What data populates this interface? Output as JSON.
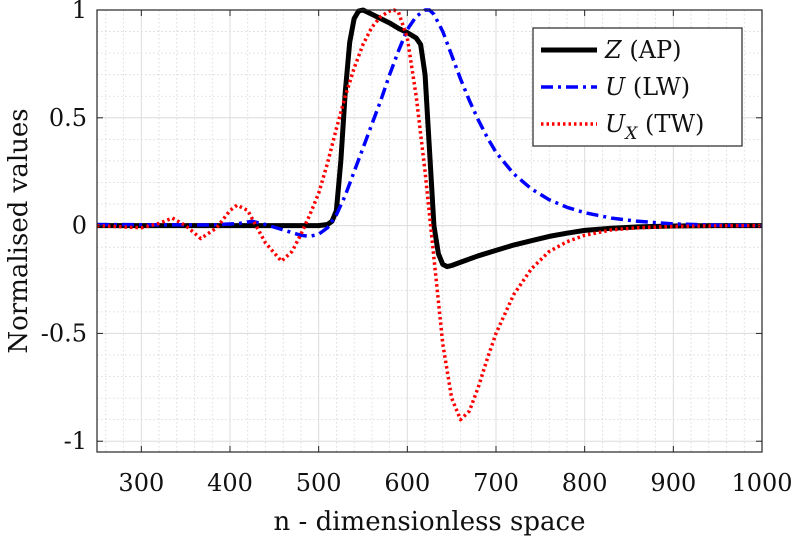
{
  "chart_data": {
    "type": "line",
    "title": "",
    "xlabel": "n - dimensionless space",
    "ylabel": "Normalised values",
    "xlim": [
      250,
      1000
    ],
    "ylim": [
      -1.05,
      1.0
    ],
    "xticks": [
      300,
      400,
      500,
      600,
      700,
      800,
      900,
      1000
    ],
    "xtick_labels": [
      "300",
      "400",
      "500",
      "600",
      "700",
      "800",
      "900",
      "1000"
    ],
    "yticks": [
      -1,
      -0.5,
      0,
      0.5,
      1
    ],
    "ytick_labels": [
      "-1",
      "-0.5",
      "0",
      "0.5",
      "1"
    ],
    "grid": true,
    "minor_grid": true,
    "legend_position": "top-right",
    "series": [
      {
        "name": "Z (AP)",
        "legend_symbol": "Z",
        "legend_sub": "",
        "legend_suffix": " (AP)",
        "color": "#000000",
        "style": "solid",
        "x": [
          250,
          500,
          510,
          515,
          520,
          525,
          530,
          535,
          540,
          545,
          550,
          560,
          570,
          580,
          590,
          600,
          610,
          615,
          620,
          625,
          630,
          635,
          640,
          645,
          650,
          660,
          680,
          700,
          720,
          740,
          760,
          780,
          800,
          830,
          860,
          900,
          950,
          1000
        ],
        "values": [
          0,
          0,
          0.005,
          0.02,
          0.07,
          0.3,
          0.62,
          0.85,
          0.96,
          0.995,
          1.0,
          0.98,
          0.96,
          0.94,
          0.915,
          0.895,
          0.87,
          0.84,
          0.7,
          0.35,
          0.0,
          -0.13,
          -0.18,
          -0.19,
          -0.185,
          -0.17,
          -0.14,
          -0.115,
          -0.09,
          -0.07,
          -0.05,
          -0.035,
          -0.022,
          -0.012,
          -0.006,
          -0.002,
          0,
          0
        ]
      },
      {
        "name": "U (LW)",
        "legend_symbol": "U",
        "legend_sub": "",
        "legend_suffix": " (LW)",
        "color": "#0000ff",
        "style": "dashdot",
        "x": [
          250,
          380,
          410,
          425,
          440,
          460,
          480,
          490,
          500,
          510,
          520,
          530,
          540,
          550,
          560,
          570,
          580,
          590,
          600,
          610,
          620,
          625,
          630,
          640,
          650,
          660,
          670,
          680,
          690,
          700,
          720,
          740,
          760,
          780,
          800,
          830,
          860,
          900,
          950,
          1000
        ],
        "values": [
          0.005,
          0.003,
          0.01,
          0.02,
          0.005,
          -0.02,
          -0.045,
          -0.05,
          -0.04,
          -0.01,
          0.05,
          0.14,
          0.25,
          0.36,
          0.47,
          0.58,
          0.7,
          0.81,
          0.91,
          0.97,
          1.0,
          1.0,
          0.98,
          0.9,
          0.79,
          0.68,
          0.58,
          0.49,
          0.41,
          0.34,
          0.24,
          0.17,
          0.12,
          0.085,
          0.06,
          0.035,
          0.02,
          0.008,
          0.002,
          0
        ]
      },
      {
        "name": "U_X (TW)",
        "legend_symbol": "U",
        "legend_sub": "X",
        "legend_suffix": " (TW)",
        "color": "#ff0000",
        "style": "dotted",
        "x": [
          250,
          300,
          320,
          335,
          350,
          367,
          385,
          400,
          408,
          420,
          440,
          458,
          470,
          480,
          490,
          500,
          510,
          520,
          530,
          540,
          550,
          560,
          570,
          580,
          585,
          590,
          600,
          610,
          620,
          630,
          640,
          650,
          660,
          670,
          680,
          690,
          700,
          720,
          740,
          760,
          780,
          800,
          830,
          860,
          900,
          950,
          1000
        ],
        "values": [
          0,
          -0.01,
          0.01,
          0.035,
          0.0,
          -0.06,
          -0.01,
          0.07,
          0.095,
          0.07,
          -0.08,
          -0.165,
          -0.12,
          -0.04,
          0.05,
          0.15,
          0.29,
          0.45,
          0.6,
          0.73,
          0.84,
          0.92,
          0.97,
          0.995,
          1.0,
          0.99,
          0.87,
          0.6,
          0.25,
          -0.15,
          -0.55,
          -0.8,
          -0.9,
          -0.86,
          -0.75,
          -0.62,
          -0.5,
          -0.32,
          -0.2,
          -0.12,
          -0.075,
          -0.045,
          -0.02,
          -0.01,
          -0.004,
          -0.001,
          0
        ]
      }
    ]
  }
}
